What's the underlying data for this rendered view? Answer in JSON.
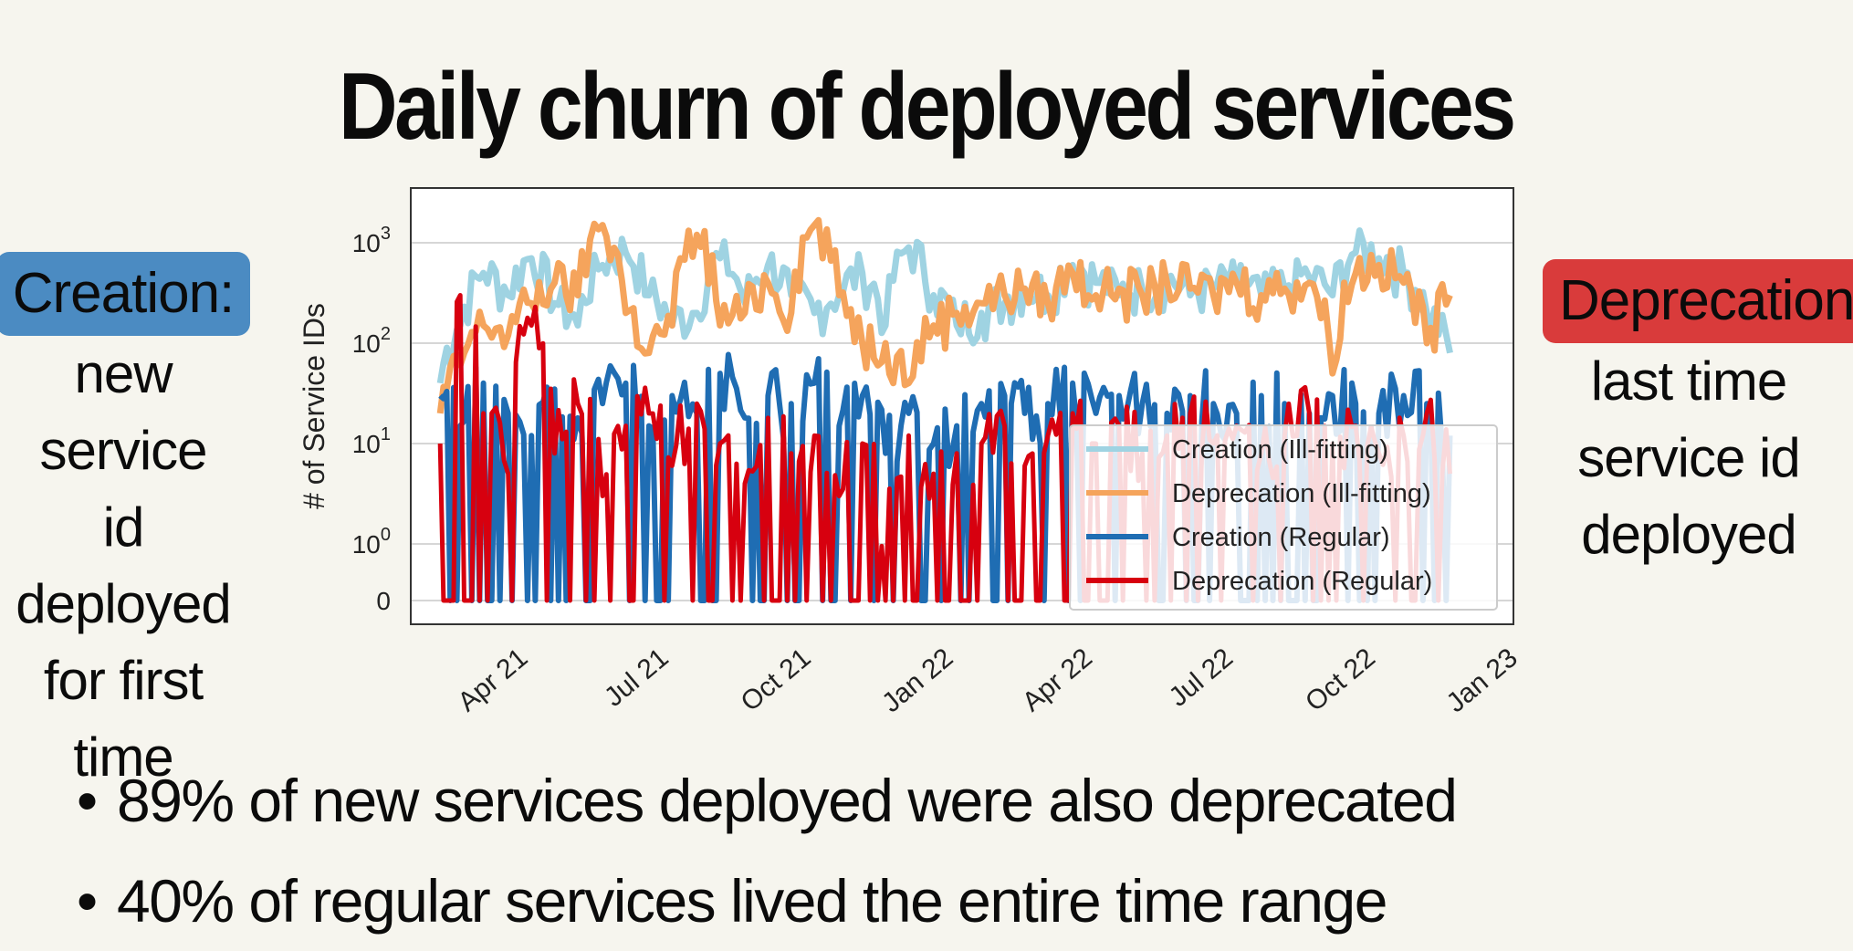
{
  "title": "Daily churn of deployed services",
  "left_note": {
    "tag": "Creation:",
    "lines": [
      "new service",
      "id deployed",
      "for first time"
    ]
  },
  "right_note": {
    "tag": "Deprecation:",
    "lines": [
      "last time",
      "service id",
      "deployed"
    ]
  },
  "bullets": [
    "89% of new services deployed were also deprecated",
    "40% of regular services lived the entire time range"
  ],
  "chart_data": {
    "type": "line",
    "ylabel": "# of Service IDs",
    "yscale": "symlog",
    "ylim": [
      0,
      2000
    ],
    "yticks": [
      {
        "value": 0,
        "base": "0",
        "exp": ""
      },
      {
        "value": 1,
        "base": "10",
        "exp": "0"
      },
      {
        "value": 10,
        "base": "10",
        "exp": "1"
      },
      {
        "value": 100,
        "base": "10",
        "exp": "2"
      },
      {
        "value": 1000,
        "base": "10",
        "exp": "3"
      }
    ],
    "xlim": [
      "2021-02-01",
      "2023-01-15"
    ],
    "xticks": [
      "Apr 21",
      "Jul 21",
      "Oct 21",
      "Jan 22",
      "Apr 22",
      "Jul 22",
      "Oct 22",
      "Jan 23"
    ],
    "xtick_dates": [
      "2021-04-01",
      "2021-07-01",
      "2021-10-01",
      "2022-01-01",
      "2022-04-01",
      "2022-07-01",
      "2022-10-01",
      "2023-01-01"
    ],
    "grid": true,
    "legend_position": "lower-right",
    "series": [
      {
        "name": "Creation (Ill-fitting)",
        "color": "#9fd3e2",
        "x": [
          "2021-02-20",
          "2021-03-05",
          "2021-03-20",
          "2021-04-05",
          "2021-04-20",
          "2021-05-05",
          "2021-05-20",
          "2021-06-05",
          "2021-06-20",
          "2021-07-05",
          "2021-07-20",
          "2021-08-05",
          "2021-08-20",
          "2021-09-05",
          "2021-09-20",
          "2021-10-05",
          "2021-10-20",
          "2021-11-05",
          "2021-11-20",
          "2021-12-05",
          "2021-12-20",
          "2022-01-05",
          "2022-01-20",
          "2022-02-05",
          "2022-02-20",
          "2022-03-05",
          "2022-03-20",
          "2022-04-05",
          "2022-04-20",
          "2022-05-05",
          "2022-05-20",
          "2022-06-05",
          "2022-06-20",
          "2022-07-05",
          "2022-07-20",
          "2022-08-05",
          "2022-08-20",
          "2022-09-05",
          "2022-09-20",
          "2022-10-05",
          "2022-10-20",
          "2022-11-05",
          "2022-11-20",
          "2022-12-05"
        ],
        "values": [
          40,
          150,
          500,
          300,
          700,
          250,
          150,
          600,
          800,
          300,
          150,
          200,
          700,
          250,
          600,
          300,
          200,
          300,
          500,
          150,
          900,
          300,
          150,
          200,
          250,
          350,
          300,
          600,
          400,
          300,
          350,
          400,
          300,
          350,
          400,
          300,
          350,
          450,
          300,
          800,
          700,
          500,
          200,
          80
        ]
      },
      {
        "name": "Deprecation (Ill-fitting)",
        "color": "#f5a45c",
        "x": [
          "2021-02-20",
          "2021-03-05",
          "2021-03-20",
          "2021-04-05",
          "2021-04-20",
          "2021-05-05",
          "2021-05-20",
          "2021-06-05",
          "2021-06-20",
          "2021-07-05",
          "2021-07-20",
          "2021-08-05",
          "2021-08-20",
          "2021-09-05",
          "2021-09-20",
          "2021-10-05",
          "2021-10-20",
          "2021-11-05",
          "2021-11-20",
          "2021-12-05",
          "2021-12-20",
          "2022-01-05",
          "2022-01-20",
          "2022-02-05",
          "2022-02-20",
          "2022-03-05",
          "2022-03-20",
          "2022-04-05",
          "2022-04-20",
          "2022-05-05",
          "2022-05-20",
          "2022-06-05",
          "2022-06-20",
          "2022-07-05",
          "2022-07-20",
          "2022-08-05",
          "2022-08-20",
          "2022-09-05",
          "2022-09-20",
          "2022-10-05",
          "2022-10-20",
          "2022-11-05",
          "2022-11-20",
          "2022-12-05"
        ],
        "values": [
          20,
          60,
          150,
          120,
          250,
          400,
          300,
          1500,
          200,
          80,
          150,
          1200,
          150,
          200,
          400,
          200,
          1500,
          300,
          100,
          100,
          40,
          150,
          200,
          250,
          300,
          350,
          250,
          500,
          300,
          350,
          300,
          400,
          350,
          300,
          400,
          300,
          350,
          400,
          50,
          500,
          600,
          400,
          100,
          300
        ]
      },
      {
        "name": "Creation (Regular)",
        "color": "#1f6db3",
        "x": [
          "2021-02-20",
          "2021-03-05",
          "2021-03-20",
          "2021-04-05",
          "2021-04-20",
          "2021-05-05",
          "2021-05-20",
          "2021-06-05",
          "2021-06-20",
          "2021-07-05",
          "2021-07-20",
          "2021-08-05",
          "2021-08-20",
          "2021-09-05",
          "2021-09-20",
          "2021-10-05",
          "2021-10-20",
          "2021-11-05",
          "2021-11-20",
          "2021-12-05",
          "2021-12-20",
          "2022-01-05",
          "2022-01-20",
          "2022-02-05",
          "2022-02-20",
          "2022-03-05",
          "2022-03-20",
          "2022-04-05",
          "2022-04-20",
          "2022-05-05",
          "2022-05-20",
          "2022-06-05",
          "2022-06-20",
          "2022-07-05",
          "2022-07-20",
          "2022-08-05",
          "2022-08-20",
          "2022-09-05",
          "2022-09-20",
          "2022-10-05",
          "2022-10-20",
          "2022-11-05",
          "2022-11-20",
          "2022-12-05"
        ],
        "values": [
          30,
          15,
          40,
          20,
          12,
          35,
          18,
          25,
          40,
          15,
          30,
          20,
          50,
          18,
          30,
          25,
          40,
          15,
          30,
          8,
          20,
          10,
          15,
          25,
          30,
          20,
          25,
          40,
          20,
          30,
          25,
          20,
          30,
          25,
          20,
          30,
          25,
          20,
          30,
          25,
          20,
          30,
          25,
          12
        ]
      },
      {
        "name": "Deprecation (Regular)",
        "color": "#d7000f",
        "x": [
          "2021-02-20",
          "2021-03-05",
          "2021-03-20",
          "2021-04-05",
          "2021-04-20",
          "2021-05-05",
          "2021-05-20",
          "2021-06-05",
          "2021-06-20",
          "2021-07-05",
          "2021-07-20",
          "2021-08-05",
          "2021-08-20",
          "2021-09-05",
          "2021-09-20",
          "2021-10-05",
          "2021-10-20",
          "2021-11-05",
          "2021-11-20",
          "2021-12-05",
          "2021-12-20",
          "2022-01-05",
          "2022-01-20",
          "2022-02-05",
          "2022-02-20",
          "2022-03-05",
          "2022-03-20",
          "2022-04-05",
          "2022-04-20",
          "2022-05-05",
          "2022-05-20",
          "2022-06-05",
          "2022-06-20",
          "2022-07-05",
          "2022-07-20",
          "2022-08-05",
          "2022-08-20",
          "2022-09-05",
          "2022-09-20",
          "2022-10-05",
          "2022-10-20",
          "2022-11-05",
          "2022-11-20",
          "2022-12-05"
        ],
        "values": [
          10,
          300,
          20,
          5,
          150,
          8,
          25,
          3,
          15,
          20,
          6,
          25,
          10,
          4,
          18,
          8,
          12,
          3,
          10,
          0,
          12,
          5,
          8,
          10,
          15,
          6,
          12,
          20,
          10,
          15,
          8,
          12,
          20,
          10,
          15,
          8,
          12,
          20,
          10,
          15,
          8,
          12,
          20,
          5
        ]
      }
    ]
  }
}
